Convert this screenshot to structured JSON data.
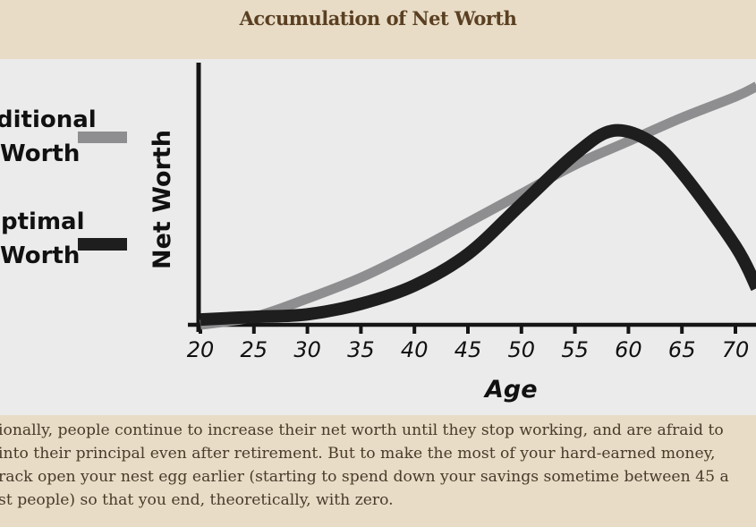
{
  "title": "Accumulation of Net Worth",
  "colors": {
    "traditional": "#8e8e90",
    "optimal": "#1e1e1e",
    "page_bg": "#e8dcc6",
    "figure_bg": "#ebebeb",
    "title": "#5a3f22"
  },
  "chart_data": {
    "type": "line",
    "title": "Accumulation of Net Worth",
    "xlabel": "Age",
    "ylabel": "Net Worth",
    "xlim": [
      20,
      72
    ],
    "ylim": [
      0,
      100
    ],
    "x_ticks": [
      "20",
      "25",
      "30",
      "35",
      "40",
      "45",
      "50",
      "55",
      "60",
      "65",
      "70"
    ],
    "grid": false,
    "legend_placement": "left",
    "series": [
      {
        "name": "Traditional Net Worth",
        "legend_visible_text": [
          "ditional",
          "Worth"
        ],
        "x": [
          20,
          25,
          30,
          35,
          40,
          45,
          50,
          55,
          60,
          65,
          70,
          72
        ],
        "y": [
          0,
          3,
          10,
          18,
          28,
          39,
          50,
          61,
          70,
          79,
          87,
          91
        ]
      },
      {
        "name": "Optimal Net Worth",
        "legend_visible_text": [
          "ptimal",
          "Worth"
        ],
        "x": [
          20,
          25,
          30,
          35,
          40,
          45,
          50,
          55,
          58.5,
          62,
          65,
          70,
          72
        ],
        "y": [
          2,
          3,
          4,
          8,
          15,
          27,
          46,
          65,
          74,
          70,
          58,
          30,
          14
        ]
      }
    ]
  },
  "caption": {
    "lines": [
      "ionally, people continue to increase their net worth until they stop working, and are afraid to",
      "into their principal even after retirement. But to make the most of your hard-earned money,",
      "rack open your nest egg earlier (starting to spend down your savings sometime between 45 a",
      "st people) so that you end, theoretically, with zero."
    ]
  }
}
